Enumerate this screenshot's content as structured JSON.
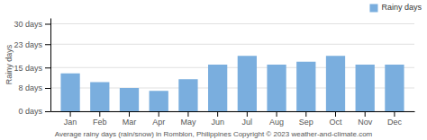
{
  "chart_data": {
    "type": "bar",
    "categories": [
      "Jan",
      "Feb",
      "Mar",
      "Apr",
      "May",
      "Jun",
      "Jul",
      "Aug",
      "Sep",
      "Oct",
      "Nov",
      "Dec"
    ],
    "series": [
      {
        "name": "Rainy days",
        "color": "#7aaede",
        "values": [
          13,
          10,
          8,
          7,
          11,
          16,
          19,
          16,
          17,
          19,
          16,
          16
        ]
      }
    ],
    "ylim": [
      0,
      32
    ],
    "yticks": [
      {
        "value": 0,
        "label": "0 days"
      },
      {
        "value": 8,
        "label": "8 days"
      },
      {
        "value": 15,
        "label": "15 days"
      },
      {
        "value": 23,
        "label": "23 days"
      },
      {
        "value": 30,
        "label": "30 days"
      }
    ],
    "y_label": "Rainy days",
    "caption": "Average rainy days (rain/snow) in Romblon, Philippines   Copyright © 2023  weather-and-climate.com",
    "grid": true,
    "legend": "upper right"
  }
}
